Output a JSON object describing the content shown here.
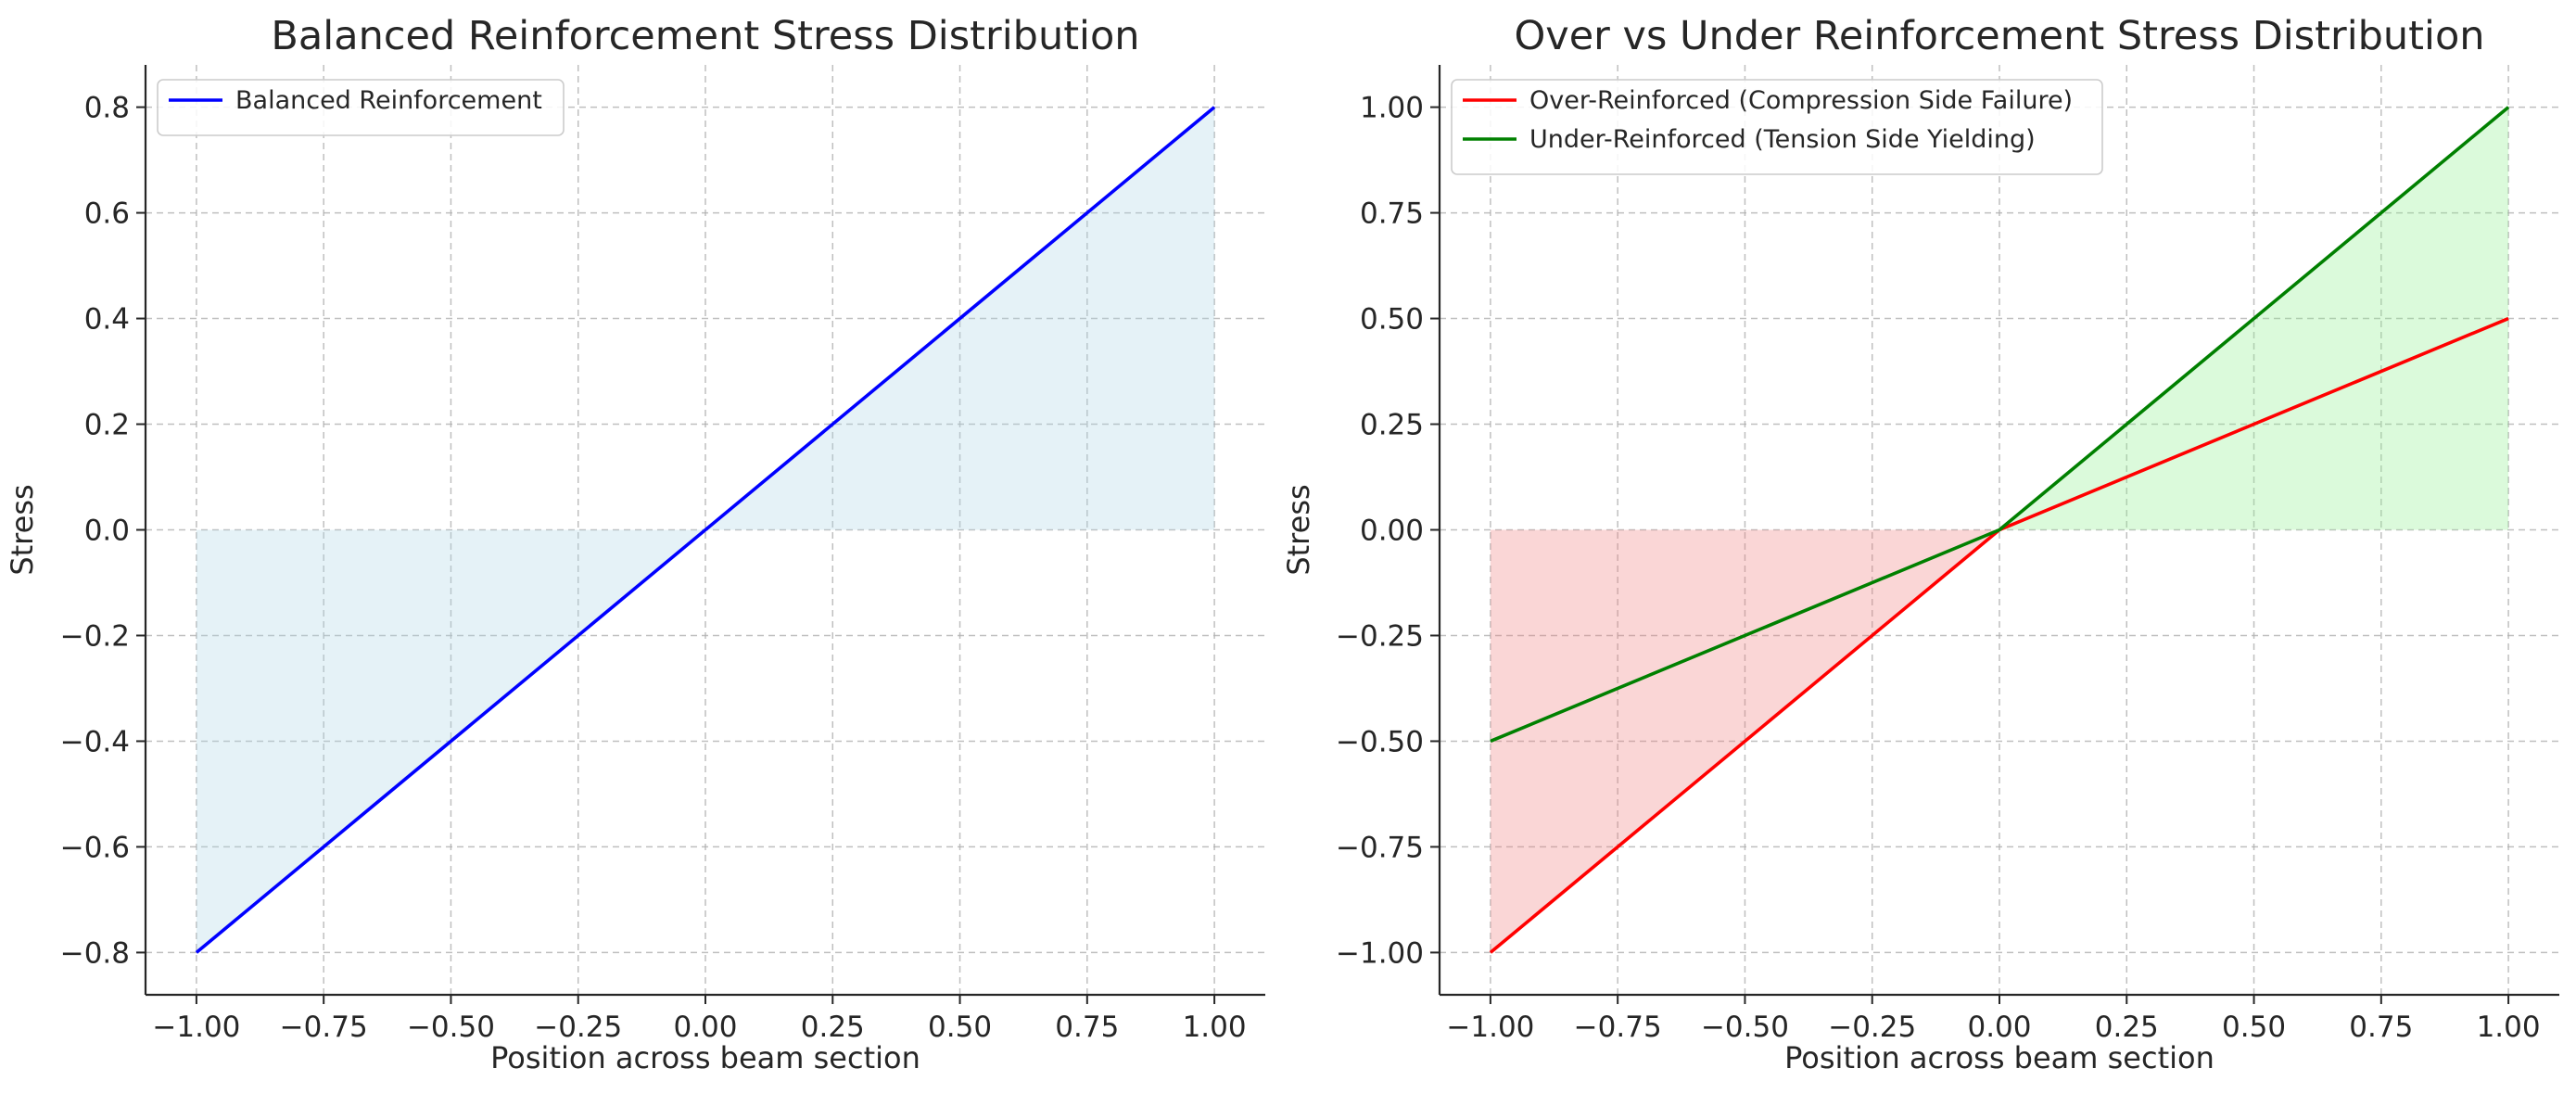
{
  "chart_data": [
    {
      "type": "line",
      "title": "Balanced Reinforcement Stress Distribution",
      "xlabel": "Position across beam section",
      "ylabel": "Stress",
      "xlim": [
        -1.1,
        1.1
      ],
      "ylim": [
        -0.88,
        0.88
      ],
      "xticks": [
        -1.0,
        -0.75,
        -0.5,
        -0.25,
        0.0,
        0.25,
        0.5,
        0.75,
        1.0
      ],
      "xtick_labels": [
        "−1.00",
        "−0.75",
        "−0.50",
        "−0.25",
        "0.00",
        "0.25",
        "0.50",
        "0.75",
        "1.00"
      ],
      "yticks": [
        -0.8,
        -0.6,
        -0.4,
        -0.2,
        0.0,
        0.2,
        0.4,
        0.6,
        0.8
      ],
      "ytick_labels": [
        "−0.8",
        "−0.6",
        "−0.4",
        "−0.2",
        "0.0",
        "0.2",
        "0.4",
        "0.6",
        "0.8"
      ],
      "grid": true,
      "legend_position": "top-left",
      "series": [
        {
          "name": "Balanced Reinforcement",
          "color": "#0000ff",
          "x": [
            -1.0,
            1.0
          ],
          "y": [
            -0.8,
            0.8
          ],
          "fill": {
            "color": "#add8e6",
            "opacity": 0.32,
            "to": 0
          }
        }
      ]
    },
    {
      "type": "line",
      "title": "Over vs Under Reinforcement Stress Distribution",
      "xlabel": "Position across beam section",
      "ylabel": "Stress",
      "xlim": [
        -1.1,
        1.1
      ],
      "ylim": [
        -1.1,
        1.1
      ],
      "xticks": [
        -1.0,
        -0.75,
        -0.5,
        -0.25,
        0.0,
        0.25,
        0.5,
        0.75,
        1.0
      ],
      "xtick_labels": [
        "−1.00",
        "−0.75",
        "−0.50",
        "−0.25",
        "0.00",
        "0.25",
        "0.50",
        "0.75",
        "1.00"
      ],
      "yticks": [
        -1.0,
        -0.75,
        -0.5,
        -0.25,
        0.0,
        0.25,
        0.5,
        0.75,
        1.0
      ],
      "ytick_labels": [
        "−1.00",
        "−0.75",
        "−0.50",
        "−0.25",
        "0.00",
        "0.25",
        "0.50",
        "0.75",
        "1.00"
      ],
      "grid": true,
      "legend_position": "top-left",
      "series": [
        {
          "name": "Over-Reinforced (Compression Side Failure)",
          "color": "#ff0000",
          "x": [
            -1.0,
            0.0,
            1.0
          ],
          "y": [
            -1.0,
            0.0,
            0.5
          ],
          "fill": {
            "color": "#f08080",
            "opacity": 0.32,
            "to": 0,
            "where": "y<0"
          }
        },
        {
          "name": "Under-Reinforced (Tension Side Yielding)",
          "color": "#008000",
          "x": [
            -1.0,
            0.0,
            1.0
          ],
          "y": [
            -0.5,
            0.0,
            1.0
          ],
          "fill": {
            "color": "#90ee90",
            "opacity": 0.32,
            "to": 0,
            "where": "y>0"
          }
        }
      ]
    }
  ]
}
